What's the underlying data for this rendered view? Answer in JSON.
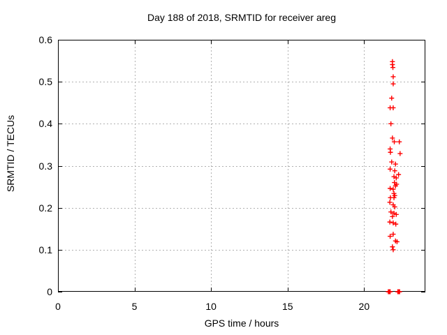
{
  "chart_data": {
    "type": "scatter",
    "title": "Day 188 of 2018, SRMTID for receiver areg",
    "xlabel": "GPS time / hours",
    "ylabel": "SRMTID / TECUs",
    "xlim": [
      0,
      24
    ],
    "ylim": [
      0,
      0.6
    ],
    "xticks": [
      0,
      5,
      10,
      15,
      20
    ],
    "yticks": [
      0,
      0.1,
      0.2,
      0.3,
      0.4,
      0.5,
      0.6
    ],
    "grid": "dashed-major-both",
    "legend": "none",
    "marker": "plus",
    "series_name": "SRMTID",
    "points": [
      [
        21.85,
        0.548
      ],
      [
        21.85,
        0.541
      ],
      [
        21.88,
        0.534
      ],
      [
        21.9,
        0.512
      ],
      [
        21.9,
        0.495
      ],
      [
        21.8,
        0.461
      ],
      [
        21.7,
        0.438
      ],
      [
        21.9,
        0.438
      ],
      [
        21.75,
        0.4
      ],
      [
        21.85,
        0.366
      ],
      [
        21.97,
        0.357
      ],
      [
        22.3,
        0.357
      ],
      [
        21.7,
        0.34
      ],
      [
        21.72,
        0.332
      ],
      [
        22.35,
        0.329
      ],
      [
        21.8,
        0.309
      ],
      [
        22.05,
        0.304
      ],
      [
        21.7,
        0.292
      ],
      [
        22.0,
        0.288
      ],
      [
        22.25,
        0.279
      ],
      [
        21.95,
        0.274
      ],
      [
        22.1,
        0.271
      ],
      [
        21.98,
        0.26
      ],
      [
        22.12,
        0.256
      ],
      [
        22.05,
        0.252
      ],
      [
        21.7,
        0.246
      ],
      [
        21.9,
        0.244
      ],
      [
        21.95,
        0.234
      ],
      [
        22.0,
        0.229
      ],
      [
        21.72,
        0.224
      ],
      [
        21.95,
        0.224
      ],
      [
        21.68,
        0.213
      ],
      [
        21.9,
        0.207
      ],
      [
        22.0,
        0.202
      ],
      [
        21.75,
        0.19
      ],
      [
        21.95,
        0.187
      ],
      [
        22.1,
        0.184
      ],
      [
        21.85,
        0.179
      ],
      [
        21.68,
        0.166
      ],
      [
        21.9,
        0.164
      ],
      [
        22.07,
        0.161
      ],
      [
        21.9,
        0.137
      ],
      [
        21.7,
        0.132
      ],
      [
        22.05,
        0.121
      ],
      [
        22.15,
        0.119
      ],
      [
        21.85,
        0.107
      ],
      [
        21.9,
        0.1
      ],
      [
        21.58,
        0.0
      ],
      [
        21.64,
        0.0
      ],
      [
        21.7,
        0.0
      ],
      [
        22.2,
        0.0
      ],
      [
        22.26,
        0.0
      ],
      [
        22.32,
        0.0
      ]
    ]
  },
  "colors": {
    "marker": "#ff0000",
    "grid": "#b0b0b0",
    "axis": "#000000",
    "background": "#ffffff",
    "text": "#000000"
  }
}
